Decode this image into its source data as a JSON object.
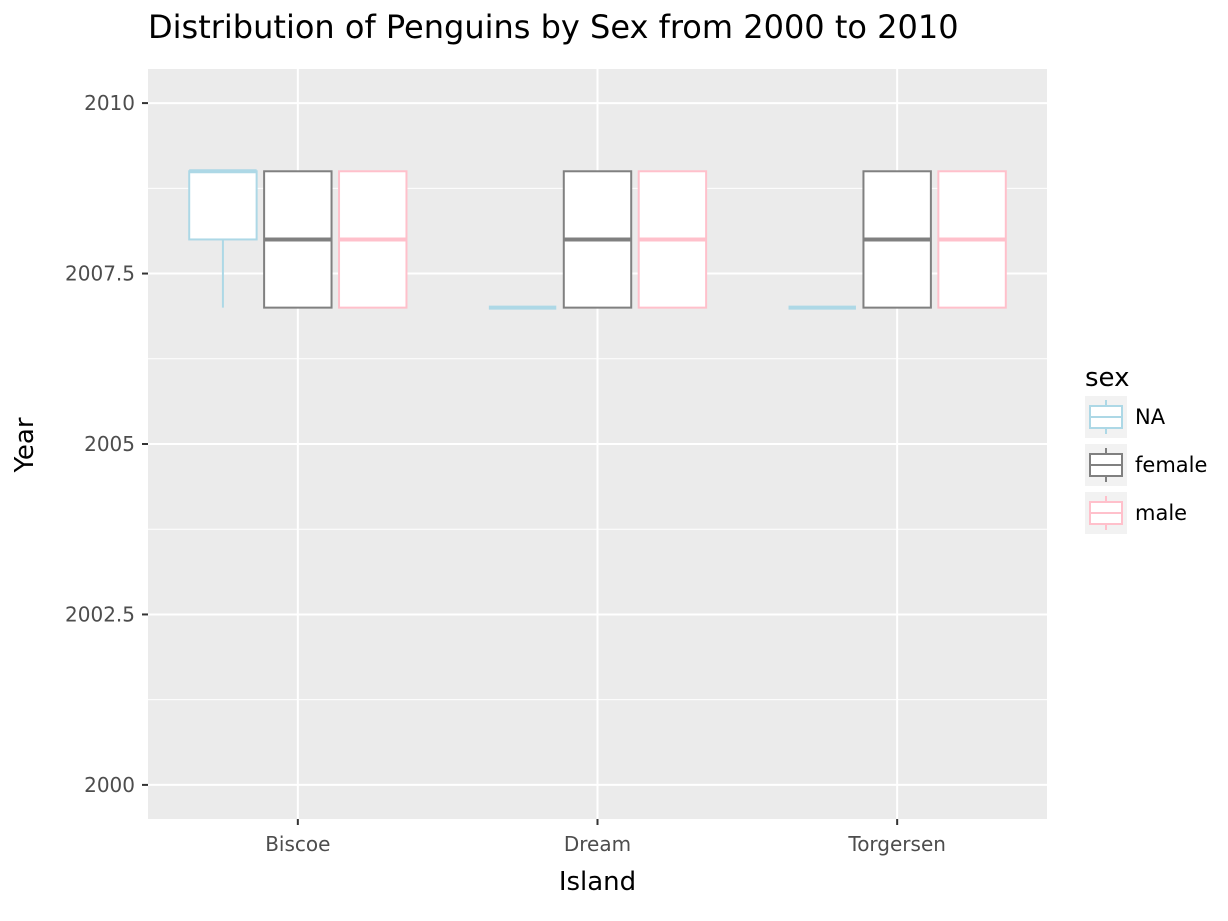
{
  "chart_data": {
    "type": "boxplot",
    "title": "Distribution of Penguins by Sex from 2000 to 2010",
    "xlabel": "Island",
    "ylabel": "Year",
    "ylim": [
      1999.5,
      2010.5
    ],
    "yticks": [
      2000,
      2002.5,
      2005,
      2007.5,
      2010
    ],
    "ytick_labels": [
      "2000",
      "2002.5",
      "2005",
      "2007.5",
      "2010"
    ],
    "categories": [
      "Biscoe",
      "Dream",
      "Torgersen"
    ],
    "grid": true,
    "legend": {
      "title": "sex",
      "position": "right"
    },
    "series": [
      {
        "name": "NA",
        "color": "#add8e6",
        "boxes": [
          {
            "category": "Biscoe",
            "min": 2007,
            "q1": 2008,
            "median": 2009,
            "q3": 2009,
            "max": 2009
          },
          {
            "category": "Dream",
            "min": 2007,
            "q1": 2007,
            "median": 2007,
            "q3": 2007,
            "max": 2007
          },
          {
            "category": "Torgersen",
            "min": 2007,
            "q1": 2007,
            "median": 2007,
            "q3": 2007,
            "max": 2007
          }
        ]
      },
      {
        "name": "female",
        "color": "#808080",
        "boxes": [
          {
            "category": "Biscoe",
            "min": 2007,
            "q1": 2007,
            "median": 2008,
            "q3": 2009,
            "max": 2009
          },
          {
            "category": "Dream",
            "min": 2007,
            "q1": 2007,
            "median": 2008,
            "q3": 2009,
            "max": 2009
          },
          {
            "category": "Torgersen",
            "min": 2007,
            "q1": 2007,
            "median": 2008,
            "q3": 2009,
            "max": 2009
          }
        ]
      },
      {
        "name": "male",
        "color": "#ffc0cb",
        "boxes": [
          {
            "category": "Biscoe",
            "min": 2007,
            "q1": 2007,
            "median": 2008,
            "q3": 2009,
            "max": 2009
          },
          {
            "category": "Dream",
            "min": 2007,
            "q1": 2007,
            "median": 2008,
            "q3": 2009,
            "max": 2009
          },
          {
            "category": "Torgersen",
            "min": 2007,
            "q1": 2007,
            "median": 2008,
            "q3": 2009,
            "max": 2009
          }
        ]
      }
    ]
  }
}
